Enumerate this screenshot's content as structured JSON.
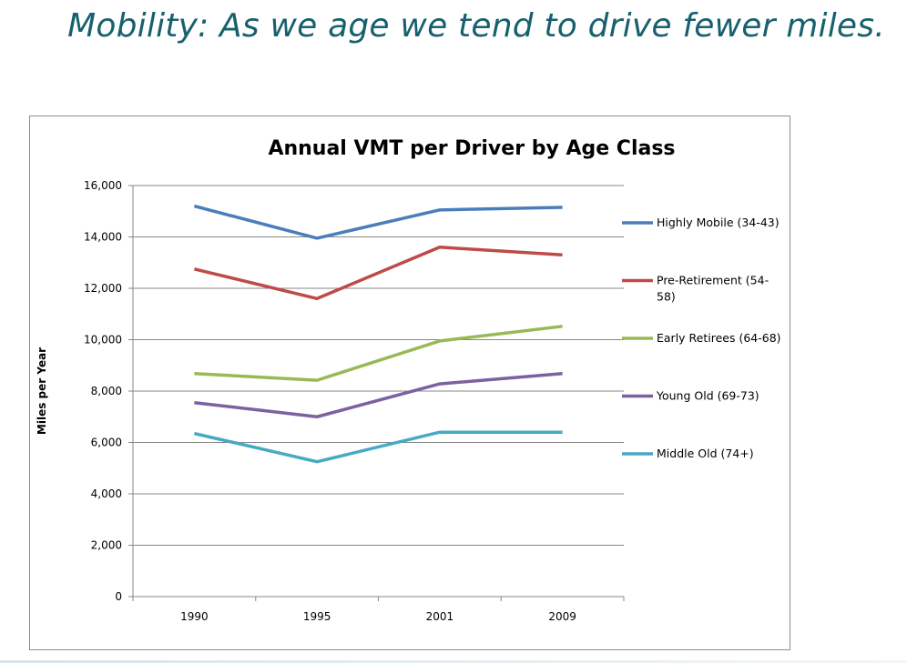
{
  "slide": {
    "title": "Mobility: As we age we tend to drive fewer miles."
  },
  "chart_data": {
    "type": "line",
    "title": "Annual VMT per Driver by Age Class",
    "xlabel": "",
    "ylabel": "Miles per Year",
    "categories": [
      "1990",
      "1995",
      "2001",
      "2009"
    ],
    "ylim": [
      0,
      16000
    ],
    "yticks": [
      0,
      2000,
      4000,
      6000,
      8000,
      10000,
      12000,
      14000,
      16000
    ],
    "ytick_labels": [
      "0",
      "2,000",
      "4,000",
      "6,000",
      "8,000",
      "10,000",
      "12,000",
      "14,000",
      "16,000"
    ],
    "grid": true,
    "legend_position": "right",
    "series": [
      {
        "name": "Highly Mobile (34-43)",
        "name_lines": [
          "Highly Mobile (34-43)"
        ],
        "color": "#4a7ebb",
        "values": [
          15200,
          13950,
          15050,
          15150
        ]
      },
      {
        "name": "Pre-Retirement (54-58)",
        "name_lines": [
          "Pre-Retirement (54-",
          "58)"
        ],
        "color": "#be4b48",
        "values": [
          12750,
          11600,
          13600,
          13300
        ]
      },
      {
        "name": "Early Retirees (64-68)",
        "name_lines": [
          "Early Retirees (64-68)"
        ],
        "color": "#98b954",
        "values": [
          8680,
          8420,
          9950,
          10520
        ]
      },
      {
        "name": "Young Old (69-73)",
        "name_lines": [
          "Young Old (69-73)"
        ],
        "color": "#7d60a0",
        "values": [
          7550,
          7000,
          8280,
          8680
        ]
      },
      {
        "name": "Middle Old (74+)",
        "name_lines": [
          "Middle Old (74+)"
        ],
        "color": "#46aac5",
        "values": [
          6350,
          5250,
          6400,
          6400
        ]
      }
    ]
  }
}
